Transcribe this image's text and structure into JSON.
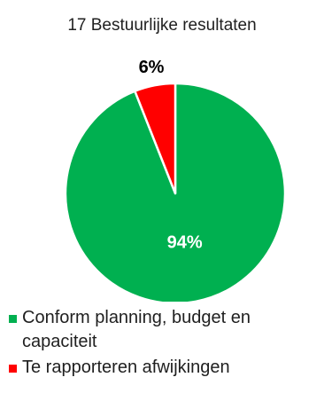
{
  "chart_data": {
    "type": "pie",
    "title": "17 Bestuurlijke resultaten",
    "slices": [
      {
        "label": "Conform planning, budget en capaciteit",
        "value": 94,
        "data_label": "94%",
        "color": "#00B050"
      },
      {
        "label": "Te rapporteren afwijkingen",
        "value": 6,
        "data_label": "6%",
        "color": "#FF0000"
      }
    ],
    "legend_position": "bottom"
  }
}
